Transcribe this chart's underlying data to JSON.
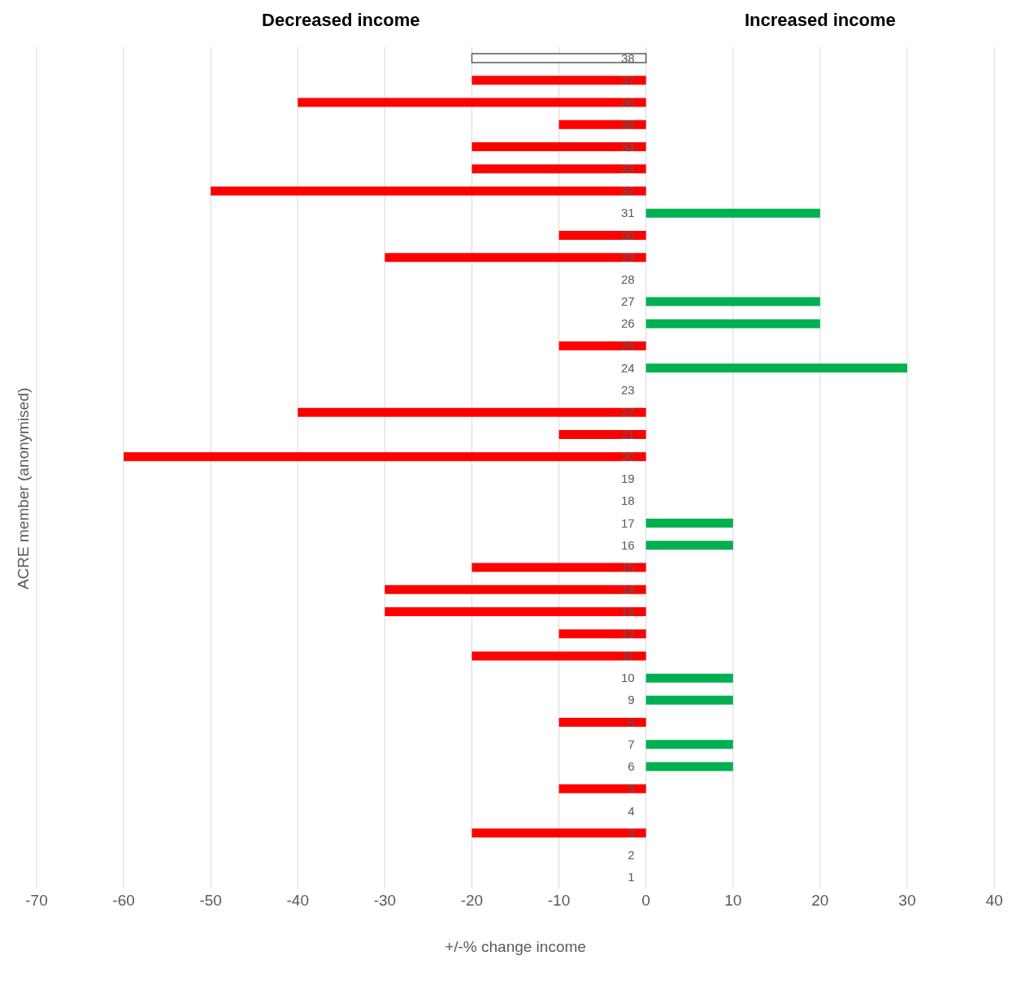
{
  "chart_data": {
    "type": "bar",
    "orientation": "horizontal",
    "annotations": [
      "Decreased income",
      "Increased income"
    ],
    "xlabel": "+/-% change income",
    "ylabel": "ACRE member (anonymised)",
    "categories": [
      "38",
      "37",
      "36",
      "35",
      "34",
      "33",
      "32",
      "31",
      "30",
      "29",
      "28",
      "27",
      "26",
      "25",
      "24",
      "23",
      "22",
      "21",
      "20",
      "19",
      "18",
      "17",
      "16",
      "15",
      "14",
      "13",
      "12",
      "11",
      "10",
      "9",
      "8",
      "7",
      "6",
      "5",
      "4",
      "3",
      "2",
      "1"
    ],
    "values": [
      -20,
      -20,
      -40,
      -10,
      -20,
      -20,
      -50,
      20,
      -10,
      -30,
      null,
      20,
      20,
      -10,
      30,
      null,
      -40,
      -10,
      -60,
      null,
      null,
      10,
      10,
      -20,
      -30,
      -30,
      -10,
      -20,
      10,
      10,
      -10,
      10,
      10,
      -10,
      null,
      -20,
      null,
      null
    ],
    "colors": [
      "#ffffff",
      "#ff0000",
      "#ff0000",
      "#ff0000",
      "#ff0000",
      "#ff0000",
      "#ff0000",
      "#00b050",
      "#ff0000",
      "#ff0000",
      "#ff0000",
      "#00b050",
      "#00b050",
      "#ff0000",
      "#00b050",
      "#ff0000",
      "#ff0000",
      "#ff0000",
      "#ff0000",
      "#ff0000",
      "#ff0000",
      "#00b050",
      "#00b050",
      "#ff0000",
      "#ff0000",
      "#ff0000",
      "#ff0000",
      "#ff0000",
      "#00b050",
      "#00b050",
      "#ff0000",
      "#00b050",
      "#00b050",
      "#ff0000",
      "#ff0000",
      "#ff0000",
      "#ff0000",
      "#ff0000"
    ],
    "xlim": [
      -70,
      40
    ],
    "xticks": [
      -70,
      -60,
      -50,
      -40,
      -30,
      -20,
      -10,
      0,
      10,
      20,
      30,
      40
    ],
    "grid": "x",
    "legend": false
  }
}
